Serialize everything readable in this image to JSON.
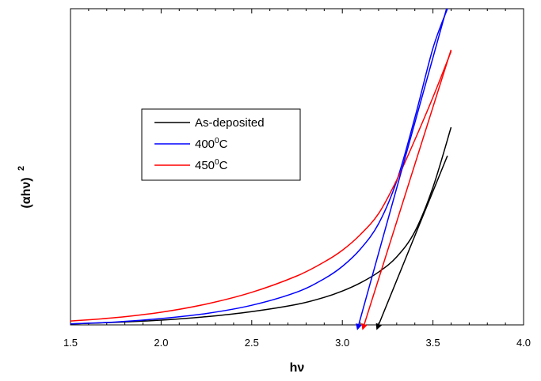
{
  "chart_data": {
    "type": "line",
    "title": "",
    "xlabel": "hν",
    "ylabel": "(αhν)",
    "ylabel_superscript": "2",
    "xlim": [
      1.5,
      4.0
    ],
    "ylim": [
      0,
      1.0
    ],
    "x_ticks": [
      "1.5",
      "2.0",
      "2.5",
      "3.0",
      "3.5",
      "4.0"
    ],
    "y_ticks_shown": false,
    "grid": false,
    "legend": {
      "placement": "upper-left-center",
      "entries": [
        {
          "label": "As-deposited",
          "color": "#000000"
        },
        {
          "label": "400",
          "superscript": "0",
          "suffix": "C",
          "color": "#0000ff"
        },
        {
          "label": "450",
          "superscript": "0",
          "suffix": "C",
          "color": "#ff0000"
        }
      ]
    },
    "series": [
      {
        "name": "As-deposited",
        "color": "#000000",
        "x": [
          1.5,
          1.75,
          2.0,
          2.25,
          2.5,
          2.75,
          2.9,
          3.0,
          3.1,
          3.2,
          3.3,
          3.4,
          3.5,
          3.6
        ],
        "y": [
          0.003,
          0.008,
          0.015,
          0.026,
          0.042,
          0.065,
          0.087,
          0.107,
          0.133,
          0.167,
          0.215,
          0.295,
          0.435,
          0.625
        ]
      },
      {
        "name": "400°C",
        "color": "#0000ff",
        "x": [
          1.5,
          1.75,
          2.0,
          2.25,
          2.5,
          2.75,
          2.9,
          3.0,
          3.1,
          3.2,
          3.3,
          3.4,
          3.5,
          3.58
        ],
        "y": [
          0.003,
          0.009,
          0.02,
          0.036,
          0.062,
          0.104,
          0.146,
          0.185,
          0.24,
          0.32,
          0.455,
          0.655,
          0.875,
          1.0
        ]
      },
      {
        "name": "450°C",
        "color": "#ff0000",
        "x": [
          1.5,
          1.75,
          2.0,
          2.25,
          2.5,
          2.75,
          2.9,
          3.0,
          3.1,
          3.2,
          3.3,
          3.4,
          3.5,
          3.6
        ],
        "y": [
          0.012,
          0.023,
          0.04,
          0.066,
          0.103,
          0.155,
          0.199,
          0.236,
          0.286,
          0.352,
          0.458,
          0.585,
          0.72,
          0.865
        ]
      }
    ],
    "tangent_lines": [
      {
        "series": "As-deposited",
        "color": "#000000",
        "x": [
          3.2,
          3.58
        ],
        "y": [
          0.0,
          0.535
        ],
        "arrow_at": "start",
        "intercept": 3.2
      },
      {
        "series": "400°C",
        "color": "#0000ff",
        "x": [
          3.09,
          3.575
        ],
        "y": [
          0.0,
          1.0
        ],
        "arrow_at": "start",
        "intercept": 3.09
      },
      {
        "series": "450°C",
        "color": "#ff0000",
        "x": [
          3.12,
          3.6
        ],
        "y": [
          0.0,
          0.87
        ],
        "arrow_at": "start",
        "intercept": 3.12
      }
    ]
  }
}
